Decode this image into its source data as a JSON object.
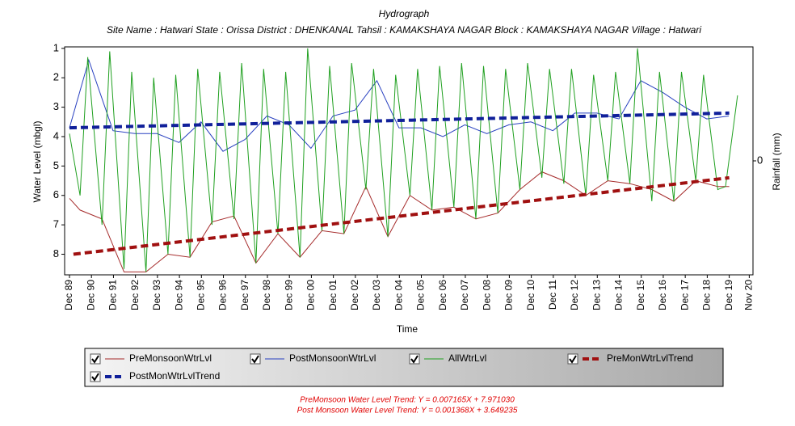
{
  "chart_data": {
    "type": "line",
    "title": "Hydrograph",
    "subtitle": "Site Name : Hatwari  State : Orissa District : DHENKANAL  Tahsil : KAMAKSHAYA NAGAR  Block : KAMAKSHAYA NAGAR Village : Hatwari",
    "x_label": "Time",
    "y_label": "Water Level (mbgl)",
    "y2_label": "Rainfall (mm)",
    "y_inverted": true,
    "xlim": [
      1989.7,
      2021.0
    ],
    "xticks": [
      {
        "value": 1989.92,
        "label": "Dec 89"
      },
      {
        "value": 1990.92,
        "label": "Dec 90"
      },
      {
        "value": 1991.92,
        "label": "Dec 91"
      },
      {
        "value": 1992.92,
        "label": "Dec 92"
      },
      {
        "value": 1993.92,
        "label": "Dec 93"
      },
      {
        "value": 1994.92,
        "label": "Dec 94"
      },
      {
        "value": 1995.92,
        "label": "Dec 95"
      },
      {
        "value": 1996.92,
        "label": "Dec 96"
      },
      {
        "value": 1997.92,
        "label": "Dec 97"
      },
      {
        "value": 1998.92,
        "label": "Dec 98"
      },
      {
        "value": 1999.92,
        "label": "Dec 99"
      },
      {
        "value": 2000.92,
        "label": "Dec 00"
      },
      {
        "value": 2001.92,
        "label": "Dec 01"
      },
      {
        "value": 2002.92,
        "label": "Dec 02"
      },
      {
        "value": 2003.92,
        "label": "Dec 03"
      },
      {
        "value": 2004.92,
        "label": "Dec 04"
      },
      {
        "value": 2005.92,
        "label": "Dec 05"
      },
      {
        "value": 2006.92,
        "label": "Dec 06"
      },
      {
        "value": 2007.92,
        "label": "Dec 07"
      },
      {
        "value": 2008.92,
        "label": "Dec 08"
      },
      {
        "value": 2009.92,
        "label": "Dec 09"
      },
      {
        "value": 2010.92,
        "label": "Dec 10"
      },
      {
        "value": 2011.92,
        "label": "Dec 11"
      },
      {
        "value": 2012.92,
        "label": "Dec 12"
      },
      {
        "value": 2013.92,
        "label": "Dec 13"
      },
      {
        "value": 2014.92,
        "label": "Dec 14"
      },
      {
        "value": 2015.92,
        "label": "Dec 15"
      },
      {
        "value": 2016.92,
        "label": "Dec 16"
      },
      {
        "value": 2017.92,
        "label": "Dec 17"
      },
      {
        "value": 2018.92,
        "label": "Dec 18"
      },
      {
        "value": 2019.92,
        "label": "Dec 19"
      },
      {
        "value": 2020.83,
        "label": "Nov 20"
      }
    ],
    "ylim": [
      0.95,
      8.7
    ],
    "yticks": [
      1,
      2,
      3,
      4,
      5,
      6,
      7,
      8
    ],
    "y2lim": [
      -1,
      1
    ],
    "y2ticks": [
      0
    ],
    "series": [
      {
        "name": "PreMonsoonWtrLvl",
        "color": "#a52a2a",
        "width": 1,
        "dashed": false,
        "x": [
          1989.92,
          1990.4,
          1991.4,
          1992.4,
          1993.4,
          1994.4,
          1995.4,
          1996.4,
          1997.4,
          1998.4,
          1999.4,
          2000.4,
          2001.4,
          2002.4,
          2003.4,
          2004.4,
          2005.4,
          2006.4,
          2007.4,
          2008.4,
          2009.4,
          2010.4,
          2011.4,
          2012.4,
          2013.4,
          2014.4,
          2015.4,
          2016.4,
          2017.4,
          2018.4,
          2019.4,
          2019.92
        ],
        "values": [
          6.1,
          6.5,
          6.8,
          8.6,
          8.6,
          8.0,
          8.1,
          6.9,
          6.7,
          8.3,
          7.3,
          8.1,
          7.2,
          7.3,
          5.7,
          7.4,
          6.0,
          6.5,
          6.4,
          6.8,
          6.6,
          5.8,
          5.2,
          5.5,
          6.0,
          5.5,
          5.6,
          5.8,
          6.2,
          5.5,
          5.7,
          5.7
        ]
      },
      {
        "name": "PostMonsoonWtrLvl",
        "color": "#2840c0",
        "width": 1,
        "dashed": false,
        "x": [
          1989.92,
          1990.8,
          1991.9,
          1992.9,
          1993.9,
          1994.9,
          1995.9,
          1996.9,
          1997.9,
          1998.9,
          1999.9,
          2000.9,
          2001.9,
          2002.9,
          2003.9,
          2004.9,
          2005.9,
          2006.9,
          2007.9,
          2008.9,
          2009.9,
          2010.9,
          2011.9,
          2012.9,
          2013.9,
          2014.9,
          2015.9,
          2016.9,
          2017.9,
          2018.9,
          2019.9
        ],
        "values": [
          3.7,
          1.4,
          3.8,
          3.9,
          3.9,
          4.2,
          3.5,
          4.5,
          4.1,
          3.3,
          3.6,
          4.4,
          3.3,
          3.1,
          2.1,
          3.7,
          3.7,
          4.0,
          3.6,
          3.9,
          3.6,
          3.5,
          3.8,
          3.2,
          3.2,
          3.4,
          2.1,
          2.5,
          3.0,
          3.4,
          3.3
        ]
      },
      {
        "name": "AllWtrLvl",
        "color": "#20a020",
        "width": 1,
        "dashed": false,
        "x": [
          1989.92,
          1990.4,
          1990.75,
          1991.4,
          1991.75,
          1992.4,
          1992.75,
          1993.4,
          1993.75,
          1994.4,
          1994.75,
          1995.4,
          1995.75,
          1996.4,
          1996.75,
          1997.4,
          1997.75,
          1998.4,
          1998.75,
          1999.4,
          1999.75,
          2000.4,
          2000.75,
          2001.4,
          2001.75,
          2002.4,
          2002.75,
          2003.4,
          2003.75,
          2004.4,
          2004.75,
          2005.4,
          2005.75,
          2006.4,
          2006.75,
          2007.4,
          2007.75,
          2008.4,
          2008.75,
          2009.4,
          2009.75,
          2010.4,
          2010.75,
          2011.4,
          2011.75,
          2012.4,
          2012.75,
          2013.4,
          2013.75,
          2014.4,
          2014.75,
          2015.4,
          2015.75,
          2016.4,
          2016.75,
          2017.4,
          2017.75,
          2018.4,
          2018.75,
          2019.4,
          2019.75,
          2020.3
        ],
        "values": [
          3.9,
          6.0,
          1.3,
          7.0,
          1.1,
          8.5,
          1.8,
          8.6,
          2.0,
          8.0,
          1.9,
          8.1,
          1.7,
          7.0,
          1.8,
          6.8,
          1.5,
          8.3,
          1.7,
          7.3,
          1.8,
          8.1,
          1.0,
          7.2,
          1.6,
          7.3,
          1.5,
          5.8,
          1.7,
          7.4,
          1.9,
          6.0,
          1.7,
          6.5,
          1.6,
          6.4,
          1.5,
          6.8,
          1.6,
          6.6,
          1.7,
          5.8,
          1.5,
          5.4,
          1.7,
          5.6,
          1.7,
          6.0,
          1.9,
          5.5,
          1.8,
          5.6,
          1.0,
          6.2,
          1.8,
          6.2,
          1.8,
          5.5,
          1.9,
          5.8,
          5.7,
          2.6
        ]
      },
      {
        "name": "PreMonWtrLvlTrend",
        "color": "#a01010",
        "width": 4,
        "dashed": true,
        "x": [
          1990.1,
          2019.92
        ],
        "values": [
          8.0,
          5.4
        ]
      },
      {
        "name": "PostMonWtrLvlTrend",
        "color": "#10209a",
        "width": 4,
        "dashed": true,
        "x": [
          1989.92,
          2019.92
        ],
        "values": [
          3.7,
          3.2
        ]
      }
    ],
    "annotations": [
      "PreMonsoon Water Level Trend: Y = 0.007165X + 7.971030",
      "Post Monsoon Water Level Trend: Y = 0.001368X + 3.649235"
    ]
  }
}
